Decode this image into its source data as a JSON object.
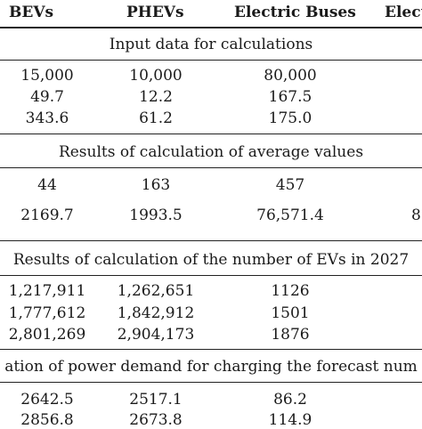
{
  "headers": [
    "BEVs",
    "PHEVs",
    "Electric Buses",
    "Elect"
  ],
  "sections": [
    {
      "title": "Input data for calculations",
      "rows": [
        [
          "15,000",
          "10,000",
          "80,000"
        ],
        [
          "49.7",
          "12.2",
          "167.5"
        ],
        [
          "343.6",
          "61.2",
          "175.0"
        ]
      ]
    },
    {
      "title": "Results of calculation of average values",
      "rows": [
        [
          "44",
          "163",
          "457",
          ""
        ],
        [
          "2169.7",
          "1993.5",
          "76,571.4",
          "8"
        ]
      ]
    },
    {
      "title": "Results of calculation of the number of EVs in 2027",
      "rows": [
        [
          "1,217,911",
          "1,262,651",
          "1126"
        ],
        [
          "1,777,612",
          "1,842,912",
          "1501"
        ],
        [
          "2,801,269",
          "2,904,173",
          "1876"
        ]
      ]
    },
    {
      "title": "ation of power demand for charging the forecast num",
      "rows": [
        [
          "2642.5",
          "2517.1",
          "86.2"
        ],
        [
          "2856.8",
          "2673.8",
          "114.9"
        ]
      ]
    }
  ]
}
